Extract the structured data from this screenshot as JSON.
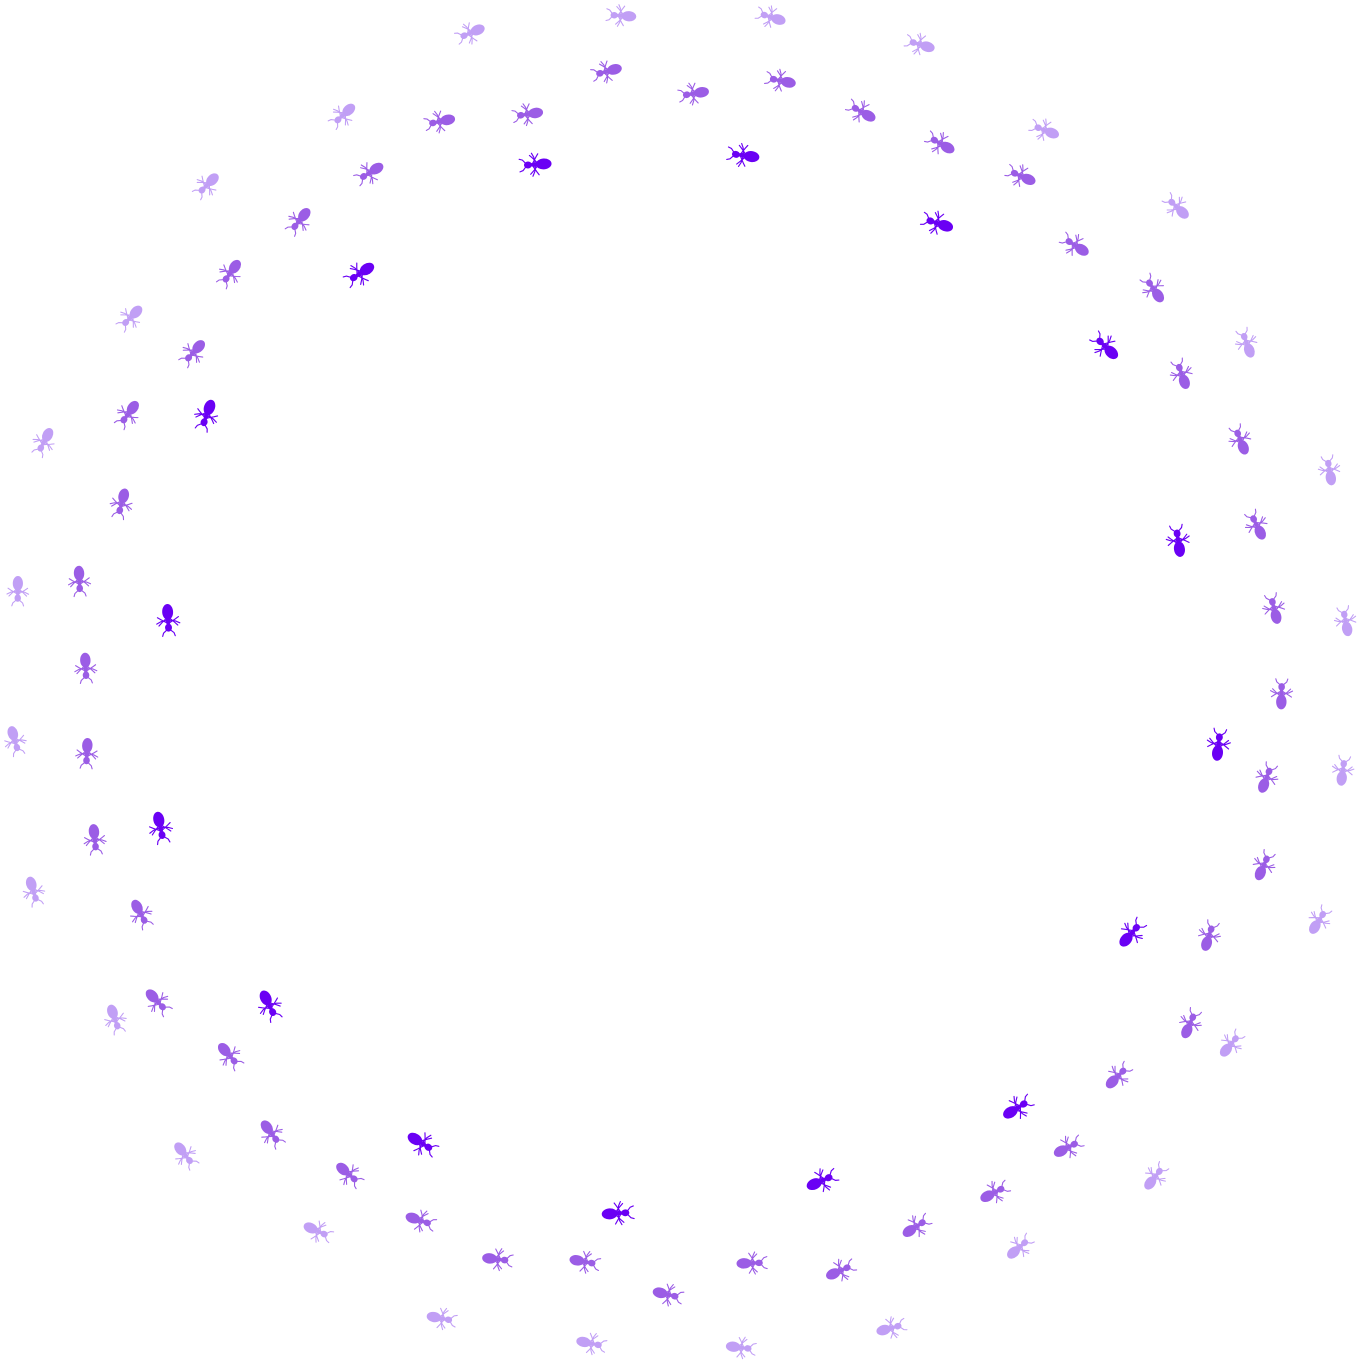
{
  "colors": {
    "background": "#ffffff",
    "inner": "#6a00f4",
    "middle": "#9b5de5",
    "outer": "#c19ff5"
  },
  "icons": {
    "ant": "ant-icon"
  },
  "rings": [
    {
      "name": "inner",
      "count": 16
    },
    {
      "name": "middle",
      "count": 44
    },
    {
      "name": "outer",
      "count": 28
    }
  ]
}
